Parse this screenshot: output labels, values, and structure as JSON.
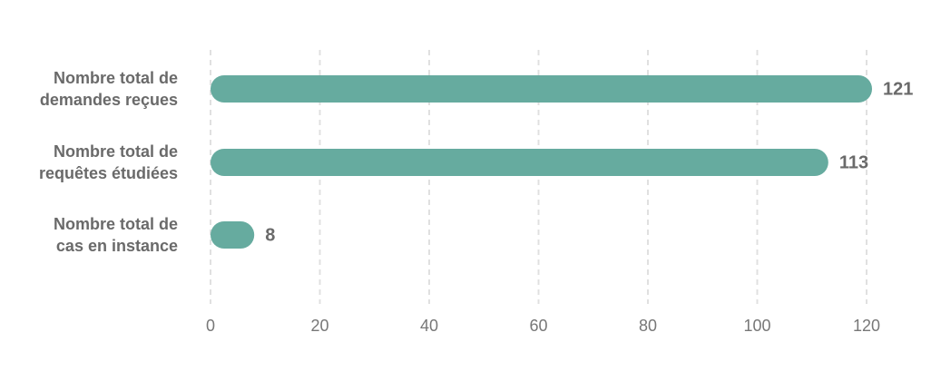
{
  "chart_data": {
    "type": "hbar",
    "categories": [
      "Nombre total de\ndemandes reçues",
      "Nombre total de\nrequêtes étudiées",
      "Nombre total de\ncas en instance"
    ],
    "values": [
      121,
      113,
      8
    ],
    "color": "#66ab9f",
    "xlim": [
      0,
      120
    ],
    "xticks": [
      0,
      20,
      40,
      60,
      80,
      100,
      120
    ],
    "grid": true
  }
}
